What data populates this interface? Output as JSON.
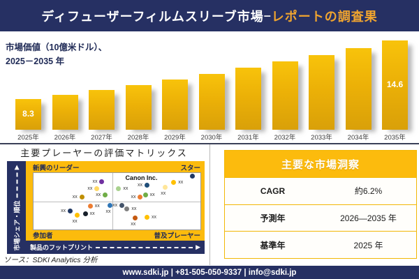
{
  "header": {
    "title_main": "ディフューザーフィルムスリーブ市場",
    "title_dash": "–",
    "title_accent": "レポートの調査果"
  },
  "chart_data": [
    {
      "type": "bar",
      "title": "市場価値（10億米ドル）、2025－2035年",
      "ylabel_display": "市場価値（10億米ドル）、\n2025－2035 年",
      "categories": [
        "2025年",
        "2026年",
        "2027年",
        "2028年",
        "2029年",
        "2030年",
        "2031年",
        "2032年",
        "2033年",
        "2034年",
        "2035年"
      ],
      "values": [
        8.3,
        8.78,
        9.29,
        9.83,
        10.4,
        11.01,
        11.65,
        12.32,
        13.04,
        13.8,
        14.6
      ],
      "data_labels": {
        "first": "8.3",
        "last": "14.6"
      },
      "bar_color": "#ECB107",
      "grid": "off",
      "legend": "none"
    },
    {
      "type": "scatter",
      "title": "主要プレーヤーの評価マトリックス",
      "xlabel": "製品のフットプリント",
      "ylabel": "市場シェア・順位",
      "quadrants": {
        "top_left": "新興のリーダー",
        "top_right": "スター",
        "bottom_left": "参加者",
        "bottom_right": "普及プレーヤー"
      },
      "annotation": "Canon Inc.",
      "points": [
        {
          "x": 41,
          "y": 16,
          "color": "#7030A0",
          "label": "xx",
          "label_pos": "left"
        },
        {
          "x": 38,
          "y": 28,
          "color": "#FFD966",
          "label": "xx",
          "label_pos": "left"
        },
        {
          "x": 29,
          "y": 43,
          "color": "#BF8F00",
          "label": "xx",
          "label_pos": "left"
        },
        {
          "x": 43,
          "y": 39,
          "color": "#70AD47",
          "label": "xx",
          "label_pos": "left"
        },
        {
          "x": 51,
          "y": 28,
          "color": "#A9D18E",
          "label": "xx",
          "label_pos": "right"
        },
        {
          "x": 68,
          "y": 22,
          "color": "#1F4E79",
          "label": "xx",
          "label_pos": "left"
        },
        {
          "x": 79,
          "y": 25,
          "color": "#FFE699",
          "label": "xx",
          "label_pos": "below"
        },
        {
          "x": 84,
          "y": 17,
          "color": "#FFC000",
          "label": "xx",
          "label_pos": "right"
        },
        {
          "x": 64,
          "y": 43,
          "color": "#ED7D31",
          "label": "xx",
          "label_pos": "left"
        },
        {
          "x": 67,
          "y": 39,
          "color": "#70AD47",
          "label": "xx",
          "label_pos": "right"
        },
        {
          "x": 95,
          "y": 5,
          "color": "#203864",
          "label": "",
          "label_pos": "none"
        },
        {
          "x": 34,
          "y": 59,
          "color": "#ED7D31",
          "label": "xx",
          "label_pos": "right"
        },
        {
          "x": 46,
          "y": 58,
          "color": "#2E75B6",
          "label": "xx",
          "label_pos": "below"
        },
        {
          "x": 22,
          "y": 67,
          "color": "#203864",
          "label": "xx",
          "label_pos": "left"
        },
        {
          "x": 26,
          "y": 75,
          "color": "#FFC000",
          "label": "xx",
          "label_pos": "below"
        },
        {
          "x": 31,
          "y": 72,
          "color": "#17202A",
          "label": "xx",
          "label_pos": "right"
        },
        {
          "x": 53,
          "y": 57,
          "color": "#44546A",
          "label": "xx",
          "label_pos": "left"
        },
        {
          "x": 56,
          "y": 63,
          "color": "#7F7F7F",
          "label": "xx",
          "label_pos": "right"
        },
        {
          "x": 61,
          "y": 80,
          "color": "#C55A11",
          "label": "xx",
          "label_pos": "below"
        },
        {
          "x": 68,
          "y": 78,
          "color": "#FFC000",
          "label": "xx",
          "label_pos": "right"
        }
      ]
    }
  ],
  "insights_table": {
    "title": "主要な市場洞察",
    "rows": [
      {
        "label": "CAGR",
        "value": "約6.2%"
      },
      {
        "label": "予測年",
        "value": "2026—2035 年"
      },
      {
        "label": "基準年",
        "value": "2025 年"
      }
    ]
  },
  "source_note": "ソース：SDKI Analytics 分析",
  "footer": {
    "text": "www.sdki.jp | +81-505-050-9337 | info@sdki.jp"
  },
  "colors": {
    "navy": "#263063",
    "gold": "#FCBB0D",
    "accent_text": "#EFA42F",
    "bar_gradient_top": "#F8C30B",
    "bar_gradient_bottom": "#D9A009"
  }
}
